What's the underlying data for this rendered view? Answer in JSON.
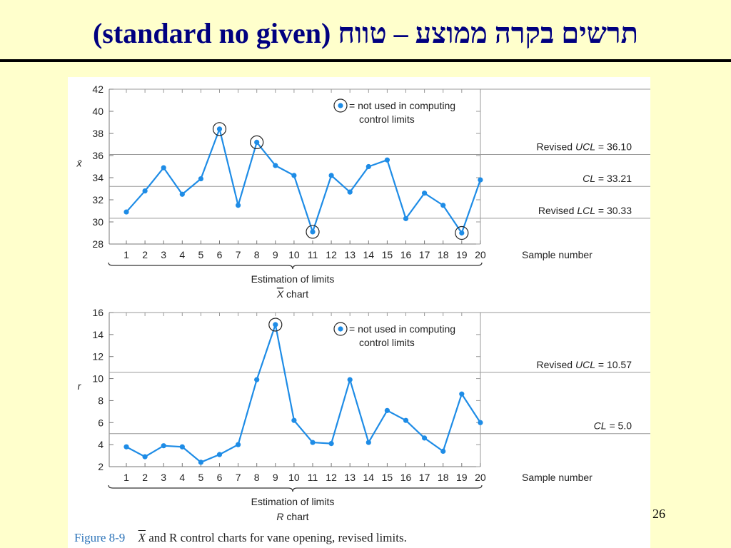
{
  "slide": {
    "title": "(standard no given) תרשים בקרה ממוצע – טווח",
    "page_number": "26",
    "caption_label": "Figure 8-9",
    "caption_xbar": "X",
    "caption_text": "and R control charts for vane opening, revised limits."
  },
  "colors": {
    "series": "#1e8ce6",
    "grid": "#bbbbbb",
    "limit": "#999999"
  },
  "chart_data": [
    {
      "type": "line",
      "ylabel": "x̄",
      "xlabel": "Sample number",
      "ylim": [
        28,
        42
      ],
      "yticks": [
        28,
        30,
        32,
        34,
        36,
        38,
        40,
        42
      ],
      "x": [
        1,
        2,
        3,
        4,
        5,
        6,
        7,
        8,
        9,
        10,
        11,
        12,
        13,
        14,
        15,
        16,
        17,
        18,
        19,
        20
      ],
      "x_tick_labels": [
        "1",
        "2",
        "3",
        "4",
        "5",
        "6",
        "7",
        "8",
        "9",
        "10",
        "11",
        "12",
        "13",
        "14",
        "15",
        "16",
        "17",
        "18",
        "19",
        "20"
      ],
      "values": [
        30.9,
        32.8,
        34.9,
        32.5,
        33.9,
        38.4,
        31.5,
        37.2,
        35.1,
        34.2,
        29.1,
        34.2,
        32.7,
        35.0,
        35.6,
        30.3,
        32.6,
        31.5,
        29.0,
        33.8
      ],
      "circled": [
        6,
        8,
        11,
        19
      ],
      "legend_line1": "= not used in computing",
      "legend_line2": "control limits",
      "limits": [
        {
          "prefix": "Revised ",
          "name": "UCL",
          "suffix": " = 36.10",
          "value": 36.1
        },
        {
          "prefix": "",
          "name": "CL",
          "suffix": " = 33.21",
          "value": 33.21
        },
        {
          "prefix": "Revised ",
          "name": "LCL",
          "suffix": " = 30.33",
          "value": 30.33
        }
      ],
      "brace_line1": "Estimation of limits",
      "brace_line2_symbol": "X",
      "brace_line2": " chart"
    },
    {
      "type": "line",
      "ylabel": "r",
      "xlabel": "Sample number",
      "ylim": [
        2,
        16
      ],
      "yticks": [
        2,
        4,
        6,
        8,
        10,
        12,
        14,
        16
      ],
      "x": [
        1,
        2,
        3,
        4,
        5,
        6,
        7,
        8,
        9,
        10,
        11,
        12,
        13,
        14,
        15,
        16,
        17,
        18,
        19,
        20
      ],
      "x_tick_labels": [
        "1",
        "2",
        "3",
        "4",
        "5",
        "6",
        "7",
        "8",
        "9",
        "10",
        "11",
        "12",
        "13",
        "14",
        "15",
        "16",
        "17",
        "18",
        "19",
        "20"
      ],
      "values": [
        3.8,
        2.9,
        3.9,
        3.8,
        2.4,
        3.1,
        4.0,
        9.9,
        14.9,
        6.2,
        4.2,
        4.1,
        9.9,
        4.2,
        7.1,
        6.2,
        4.6,
        3.4,
        8.6,
        6.0
      ],
      "circled": [
        9
      ],
      "legend_line1": "= not used in computing",
      "legend_line2": "control limits",
      "limits": [
        {
          "prefix": "Revised ",
          "name": "UCL",
          "suffix": " = 10.57",
          "value": 10.57
        },
        {
          "prefix": "",
          "name": "CL",
          "suffix": " = 5.0",
          "value": 5.0
        }
      ],
      "brace_line1": "Estimation of limits",
      "brace_line2_symbol": "R",
      "brace_line2": " chart"
    }
  ]
}
